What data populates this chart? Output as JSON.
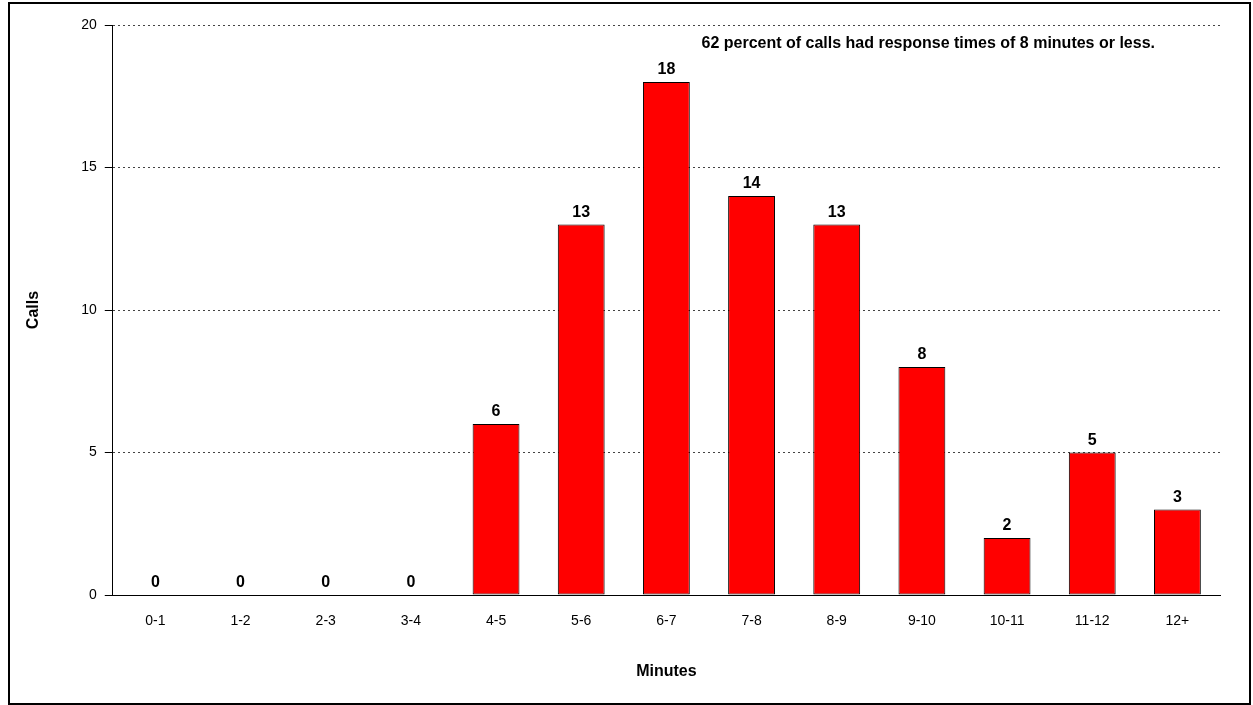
{
  "chart_data": {
    "type": "bar",
    "xlabel": "Minutes",
    "ylabel": "Calls",
    "annotations": [
      "62 percent of calls had response times of 8 minutes or less."
    ],
    "categories": [
      "0-1",
      "1-2",
      "2-3",
      "3-4",
      "4-5",
      "5-6",
      "6-7",
      "7-8",
      "8-9",
      "9-10",
      "10-11",
      "11-12",
      "12+"
    ],
    "values": [
      0,
      0,
      0,
      0,
      6,
      13,
      18,
      14,
      13,
      8,
      2,
      5,
      3
    ],
    "color": "#ff0000",
    "ylim": [
      0,
      20
    ],
    "yticks": [
      0,
      5,
      10,
      15,
      20
    ],
    "grid": "y",
    "data_labels": true,
    "legend": false
  }
}
